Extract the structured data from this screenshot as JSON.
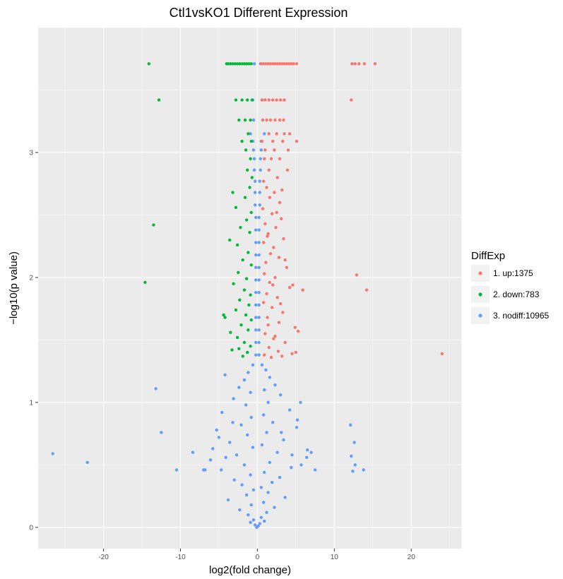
{
  "chart_data": {
    "type": "scatter",
    "title": "Ctl1vsKO1 Different Expression",
    "xlabel": "log2(fold change)",
    "ylabel": "−log10(p value)",
    "xlim": [
      -28.5,
      26.5
    ],
    "ylim": [
      -0.17,
      4.0
    ],
    "x_ticks": [
      -20,
      -10,
      0,
      10,
      20
    ],
    "y_ticks": [
      0,
      1,
      2,
      3
    ],
    "grid": true,
    "background": "#ebebeb",
    "legend": {
      "title": "DiffExp",
      "position": "right",
      "entries": [
        {
          "label": "1. up:1375",
          "color": "#f8766d"
        },
        {
          "label": "2. down:783",
          "color": "#00ba38"
        },
        {
          "label": "3. nodiff:10965",
          "color": "#619cff"
        }
      ]
    },
    "series": [
      {
        "name": "1. up:1375",
        "color": "#f8766d",
        "points": [
          [
            0.5,
            3.71
          ],
          [
            0.8,
            3.71
          ],
          [
            1.1,
            3.71
          ],
          [
            1.4,
            3.71
          ],
          [
            1.7,
            3.71
          ],
          [
            2.0,
            3.71
          ],
          [
            2.3,
            3.71
          ],
          [
            2.6,
            3.71
          ],
          [
            2.9,
            3.71
          ],
          [
            3.2,
            3.71
          ],
          [
            3.5,
            3.71
          ],
          [
            3.8,
            3.71
          ],
          [
            4.1,
            3.71
          ],
          [
            4.4,
            3.71
          ],
          [
            4.7,
            3.71
          ],
          [
            5.1,
            3.71
          ],
          [
            12.3,
            3.71
          ],
          [
            12.7,
            3.71
          ],
          [
            13.2,
            3.71
          ],
          [
            13.9,
            3.71
          ],
          [
            15.3,
            3.71
          ],
          [
            0.6,
            3.42
          ],
          [
            1.0,
            3.42
          ],
          [
            1.5,
            3.42
          ],
          [
            2.0,
            3.42
          ],
          [
            2.5,
            3.42
          ],
          [
            3.0,
            3.42
          ],
          [
            3.5,
            3.42
          ],
          [
            12.2,
            3.42
          ],
          [
            0.7,
            3.26
          ],
          [
            1.2,
            3.26
          ],
          [
            1.7,
            3.26
          ],
          [
            2.3,
            3.26
          ],
          [
            2.9,
            3.26
          ],
          [
            3.4,
            3.26
          ],
          [
            1.5,
            3.15
          ],
          [
            2.5,
            3.15
          ],
          [
            3.5,
            3.15
          ],
          [
            4.2,
            3.15
          ],
          [
            0.6,
            3.09
          ],
          [
            2.0,
            3.09
          ],
          [
            3.3,
            3.09
          ],
          [
            5.1,
            3.09
          ],
          [
            1.0,
            3.02
          ],
          [
            2.2,
            3.02
          ],
          [
            4.0,
            3.02
          ],
          [
            0.9,
            2.95
          ],
          [
            1.8,
            2.95
          ],
          [
            2.9,
            2.95
          ],
          [
            3.9,
            2.86
          ],
          [
            1.5,
            2.86
          ],
          [
            2.6,
            2.8
          ],
          [
            0.8,
            2.77
          ],
          [
            1.2,
            2.72
          ],
          [
            2.2,
            2.68
          ],
          [
            1.6,
            2.64
          ],
          [
            2.9,
            2.6
          ],
          [
            0.7,
            2.55
          ],
          [
            1.9,
            2.51
          ],
          [
            3.1,
            2.47
          ],
          [
            1.0,
            2.43
          ],
          [
            2.4,
            2.4
          ],
          [
            1.4,
            2.35
          ],
          [
            3.4,
            2.31
          ],
          [
            0.8,
            2.28
          ],
          [
            2.1,
            2.24
          ],
          [
            1.7,
            2.19
          ],
          [
            2.8,
            2.16
          ],
          [
            1.1,
            2.12
          ],
          [
            3.8,
            2.08
          ],
          [
            0.9,
            2.03
          ],
          [
            2.3,
            2.0
          ],
          [
            1.6,
            1.96
          ],
          [
            4.2,
            1.92
          ],
          [
            1.2,
            1.87
          ],
          [
            2.6,
            1.84
          ],
          [
            0.8,
            1.8
          ],
          [
            1.9,
            1.76
          ],
          [
            3.3,
            1.72
          ],
          [
            1.3,
            1.68
          ],
          [
            2.8,
            1.64
          ],
          [
            4.9,
            1.6
          ],
          [
            5.3,
            1.57
          ],
          [
            1.0,
            1.55
          ],
          [
            2.1,
            1.51
          ],
          [
            3.6,
            1.48
          ],
          [
            1.5,
            1.44
          ],
          [
            2.7,
            1.41
          ],
          [
            0.9,
            1.38
          ],
          [
            1.8,
            1.36
          ],
          [
            3.2,
            1.37
          ],
          [
            4.5,
            1.39
          ],
          [
            5.0,
            1.4
          ],
          [
            2.3,
            1.53
          ],
          [
            1.4,
            1.62
          ],
          [
            3.0,
            1.79
          ],
          [
            2.0,
            1.94
          ],
          [
            3.6,
            2.14
          ],
          [
            1.3,
            2.33
          ],
          [
            2.5,
            2.52
          ],
          [
            3.2,
            2.7
          ],
          [
            4.6,
            1.94
          ],
          [
            5.9,
            1.9
          ],
          [
            12.9,
            2.02
          ],
          [
            14.2,
            1.9
          ],
          [
            24.0,
            1.39
          ]
        ]
      },
      {
        "name": "2. down:783",
        "color": "#00ba38",
        "points": [
          [
            -14.1,
            3.71
          ],
          [
            -4.0,
            3.71
          ],
          [
            -3.8,
            3.71
          ],
          [
            -3.5,
            3.71
          ],
          [
            -3.2,
            3.71
          ],
          [
            -2.9,
            3.71
          ],
          [
            -2.6,
            3.71
          ],
          [
            -2.3,
            3.71
          ],
          [
            -2.0,
            3.71
          ],
          [
            -1.7,
            3.71
          ],
          [
            -1.4,
            3.71
          ],
          [
            -1.1,
            3.71
          ],
          [
            -0.8,
            3.71
          ],
          [
            -12.8,
            3.42
          ],
          [
            -2.8,
            3.42
          ],
          [
            -2.0,
            3.42
          ],
          [
            -1.3,
            3.42
          ],
          [
            -0.7,
            3.42
          ],
          [
            -2.4,
            3.26
          ],
          [
            -1.6,
            3.26
          ],
          [
            -0.9,
            3.26
          ],
          [
            -1.2,
            3.15
          ],
          [
            -2.0,
            3.09
          ],
          [
            -0.8,
            3.09
          ],
          [
            -1.5,
            3.02
          ],
          [
            -0.9,
            2.95
          ],
          [
            -1.3,
            2.86
          ],
          [
            -0.7,
            2.8
          ],
          [
            -1.0,
            2.72
          ],
          [
            -1.6,
            2.64
          ],
          [
            -3.2,
            2.68
          ],
          [
            -2.8,
            2.56
          ],
          [
            -0.8,
            2.52
          ],
          [
            -1.4,
            2.46
          ],
          [
            -2.2,
            2.4
          ],
          [
            -1.0,
            2.36
          ],
          [
            -3.6,
            2.3
          ],
          [
            -2.6,
            2.26
          ],
          [
            -1.2,
            2.2
          ],
          [
            -1.9,
            2.14
          ],
          [
            -0.8,
            2.1
          ],
          [
            -2.5,
            2.04
          ],
          [
            -1.4,
            1.99
          ],
          [
            -3.1,
            1.95
          ],
          [
            -1.7,
            1.9
          ],
          [
            -0.9,
            1.86
          ],
          [
            -2.3,
            1.82
          ],
          [
            -1.1,
            1.78
          ],
          [
            -2.8,
            1.74
          ],
          [
            -1.5,
            1.7
          ],
          [
            -0.8,
            1.66
          ],
          [
            -4.2,
            1.68
          ],
          [
            -2.1,
            1.62
          ],
          [
            -1.2,
            1.58
          ],
          [
            -3.5,
            1.56
          ],
          [
            -2.6,
            1.52
          ],
          [
            -1.7,
            1.48
          ],
          [
            -0.9,
            1.45
          ],
          [
            -2.4,
            1.43
          ],
          [
            -1.3,
            1.4
          ],
          [
            -3.3,
            1.42
          ],
          [
            -1.9,
            1.37
          ],
          [
            -4.4,
            1.7
          ],
          [
            -13.5,
            2.42
          ],
          [
            -14.6,
            1.96
          ]
        ]
      },
      {
        "name": "3. nodiff:10965",
        "color": "#619cff",
        "points": [
          [
            0.5,
            3.09
          ],
          [
            -0.6,
            3.09
          ],
          [
            0.5,
            3.02
          ],
          [
            -0.5,
            3.02
          ],
          [
            0.4,
            2.95
          ],
          [
            -0.4,
            2.95
          ],
          [
            0.4,
            2.86
          ],
          [
            -0.4,
            2.86
          ],
          [
            0.3,
            2.77
          ],
          [
            -0.3,
            2.77
          ],
          [
            0.3,
            2.68
          ],
          [
            -0.3,
            2.68
          ],
          [
            0.3,
            2.58
          ],
          [
            -0.3,
            2.58
          ],
          [
            0.2,
            2.48
          ],
          [
            -0.2,
            2.48
          ],
          [
            0.2,
            2.38
          ],
          [
            -0.2,
            2.38
          ],
          [
            0.2,
            2.28
          ],
          [
            -0.2,
            2.28
          ],
          [
            0.2,
            2.18
          ],
          [
            -0.2,
            2.18
          ],
          [
            0.2,
            2.08
          ],
          [
            -0.2,
            2.08
          ],
          [
            0.2,
            1.98
          ],
          [
            -0.2,
            1.98
          ],
          [
            0.2,
            1.88
          ],
          [
            -0.2,
            1.88
          ],
          [
            0.2,
            1.78
          ],
          [
            -0.2,
            1.78
          ],
          [
            0.2,
            1.68
          ],
          [
            -0.2,
            1.68
          ],
          [
            0.2,
            1.58
          ],
          [
            -0.2,
            1.58
          ],
          [
            0.2,
            1.48
          ],
          [
            -0.2,
            1.48
          ],
          [
            0.2,
            1.38
          ],
          [
            -0.2,
            1.38
          ],
          [
            0.9,
            3.15
          ],
          [
            -0.9,
            3.15
          ],
          [
            0.7,
            3.26
          ],
          [
            -0.5,
            3.26
          ],
          [
            0.6,
            3.42
          ],
          [
            -0.6,
            3.42
          ],
          [
            0.4,
            3.71
          ],
          [
            -0.4,
            3.71
          ],
          [
            0.6,
            1.3
          ],
          [
            -0.6,
            1.3
          ],
          [
            1.1,
            1.26
          ],
          [
            -1.2,
            1.24
          ],
          [
            1.6,
            1.2
          ],
          [
            -1.7,
            1.18
          ],
          [
            2.3,
            1.14
          ],
          [
            -2.4,
            1.12
          ],
          [
            0.9,
            1.1
          ],
          [
            -0.9,
            1.08
          ],
          [
            3.0,
            1.06
          ],
          [
            -3.1,
            1.03
          ],
          [
            1.4,
            1.0
          ],
          [
            -1.5,
            0.98
          ],
          [
            4.2,
            0.94
          ],
          [
            -4.6,
            0.92
          ],
          [
            0.8,
            0.9
          ],
          [
            -0.8,
            0.88
          ],
          [
            2.0,
            0.84
          ],
          [
            -2.1,
            0.82
          ],
          [
            5.1,
            0.8
          ],
          [
            -5.3,
            0.78
          ],
          [
            1.2,
            0.76
          ],
          [
            -1.3,
            0.74
          ],
          [
            3.4,
            0.7
          ],
          [
            -3.6,
            0.68
          ],
          [
            0.6,
            0.66
          ],
          [
            -0.6,
            0.64
          ],
          [
            2.6,
            0.6
          ],
          [
            -2.7,
            0.58
          ],
          [
            6.4,
            0.56
          ],
          [
            -6.1,
            0.54
          ],
          [
            1.6,
            0.52
          ],
          [
            -1.7,
            0.5
          ],
          [
            4.4,
            0.48
          ],
          [
            -4.7,
            0.46
          ],
          [
            7.5,
            0.46
          ],
          [
            -7.0,
            0.46
          ],
          [
            0.9,
            0.44
          ],
          [
            -0.9,
            0.42
          ],
          [
            2.9,
            0.4
          ],
          [
            -3.0,
            0.38
          ],
          [
            1.9,
            0.36
          ],
          [
            -2.0,
            0.34
          ],
          [
            0.5,
            0.32
          ],
          [
            -0.5,
            0.3
          ],
          [
            1.4,
            0.28
          ],
          [
            -1.4,
            0.26
          ],
          [
            3.6,
            0.24
          ],
          [
            -3.8,
            0.22
          ],
          [
            0.8,
            0.2
          ],
          [
            -0.8,
            0.18
          ],
          [
            2.2,
            0.16
          ],
          [
            -2.3,
            0.14
          ],
          [
            1.2,
            0.12
          ],
          [
            -1.2,
            0.1
          ],
          [
            0.5,
            0.08
          ],
          [
            -0.5,
            0.06
          ],
          [
            0.9,
            0.05
          ],
          [
            -0.9,
            0.04
          ],
          [
            0.3,
            0.03
          ],
          [
            -0.3,
            0.02
          ],
          [
            0.1,
            0.01
          ],
          [
            -0.1,
            0.0
          ],
          [
            5.6,
            1.0
          ],
          [
            5.2,
            0.86
          ],
          [
            -5.0,
            0.72
          ],
          [
            6.5,
            0.62
          ],
          [
            -5.8,
            0.63
          ],
          [
            7.0,
            0.6
          ],
          [
            -8.4,
            0.6
          ],
          [
            5.7,
            0.5
          ],
          [
            -6.8,
            0.46
          ],
          [
            4.5,
            0.58
          ],
          [
            -4.1,
            0.56
          ],
          [
            3.1,
            0.76
          ],
          [
            -3.2,
            0.84
          ],
          [
            -4.2,
            1.22
          ],
          [
            12.1,
            0.82
          ],
          [
            12.6,
            0.68
          ],
          [
            12.2,
            0.57
          ],
          [
            12.7,
            0.5
          ],
          [
            12.4,
            0.45
          ],
          [
            13.8,
            0.46
          ],
          [
            -26.6,
            0.59
          ],
          [
            -22.1,
            0.52
          ],
          [
            -13.2,
            1.11
          ],
          [
            -12.5,
            0.76
          ],
          [
            -10.5,
            0.46
          ]
        ]
      }
    ]
  }
}
